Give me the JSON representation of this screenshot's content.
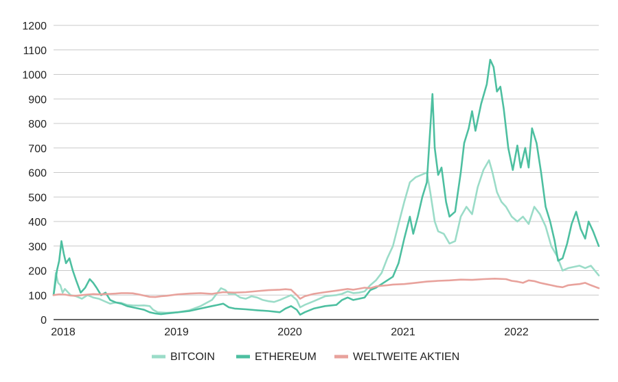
{
  "chart_data": {
    "type": "line",
    "title": "",
    "xlabel": "",
    "ylabel": "",
    "ylim": [
      0,
      1200
    ],
    "yticks": [
      0,
      100,
      200,
      300,
      400,
      500,
      600,
      700,
      800,
      900,
      1000,
      1100,
      1200
    ],
    "xlim": [
      2018.0,
      2022.82
    ],
    "xticks": [
      "2018",
      "2019",
      "2020",
      "2021",
      "2022"
    ],
    "grid": "horizontal",
    "legend_position": "bottom",
    "series": [
      {
        "name": "BITCOIN",
        "color": "#9bdcc8",
        "points": [
          [
            2018.0,
            100
          ],
          [
            2018.02,
            190
          ],
          [
            2018.04,
            150
          ],
          [
            2018.06,
            140
          ],
          [
            2018.08,
            110
          ],
          [
            2018.1,
            125
          ],
          [
            2018.15,
            100
          ],
          [
            2018.2,
            95
          ],
          [
            2018.25,
            85
          ],
          [
            2018.3,
            100
          ],
          [
            2018.35,
            90
          ],
          [
            2018.4,
            85
          ],
          [
            2018.45,
            75
          ],
          [
            2018.5,
            65
          ],
          [
            2018.55,
            70
          ],
          [
            2018.6,
            68
          ],
          [
            2018.65,
            60
          ],
          [
            2018.7,
            58
          ],
          [
            2018.75,
            57
          ],
          [
            2018.8,
            58
          ],
          [
            2018.85,
            55
          ],
          [
            2018.88,
            40
          ],
          [
            2018.92,
            30
          ],
          [
            2019.0,
            28
          ],
          [
            2019.1,
            30
          ],
          [
            2019.2,
            38
          ],
          [
            2019.3,
            55
          ],
          [
            2019.4,
            80
          ],
          [
            2019.45,
            110
          ],
          [
            2019.48,
            128
          ],
          [
            2019.52,
            120
          ],
          [
            2019.55,
            105
          ],
          [
            2019.6,
            105
          ],
          [
            2019.65,
            90
          ],
          [
            2019.7,
            85
          ],
          [
            2019.75,
            95
          ],
          [
            2019.8,
            90
          ],
          [
            2019.85,
            80
          ],
          [
            2019.9,
            75
          ],
          [
            2019.95,
            72
          ],
          [
            2020.0,
            80
          ],
          [
            2020.05,
            90
          ],
          [
            2020.1,
            100
          ],
          [
            2020.15,
            80
          ],
          [
            2020.18,
            50
          ],
          [
            2020.22,
            60
          ],
          [
            2020.3,
            75
          ],
          [
            2020.4,
            95
          ],
          [
            2020.5,
            100
          ],
          [
            2020.55,
            105
          ],
          [
            2020.6,
            115
          ],
          [
            2020.65,
            108
          ],
          [
            2020.7,
            110
          ],
          [
            2020.75,
            115
          ],
          [
            2020.8,
            140
          ],
          [
            2020.85,
            160
          ],
          [
            2020.9,
            190
          ],
          [
            2020.95,
            250
          ],
          [
            2021.0,
            300
          ],
          [
            2021.05,
            390
          ],
          [
            2021.1,
            480
          ],
          [
            2021.15,
            560
          ],
          [
            2021.2,
            580
          ],
          [
            2021.25,
            590
          ],
          [
            2021.3,
            600
          ],
          [
            2021.33,
            520
          ],
          [
            2021.37,
            400
          ],
          [
            2021.4,
            360
          ],
          [
            2021.45,
            350
          ],
          [
            2021.5,
            310
          ],
          [
            2021.55,
            320
          ],
          [
            2021.6,
            420
          ],
          [
            2021.65,
            460
          ],
          [
            2021.7,
            430
          ],
          [
            2021.75,
            540
          ],
          [
            2021.8,
            610
          ],
          [
            2021.85,
            650
          ],
          [
            2021.88,
            600
          ],
          [
            2021.92,
            520
          ],
          [
            2021.96,
            480
          ],
          [
            2022.0,
            460
          ],
          [
            2022.05,
            420
          ],
          [
            2022.1,
            400
          ],
          [
            2022.15,
            420
          ],
          [
            2022.2,
            390
          ],
          [
            2022.25,
            460
          ],
          [
            2022.3,
            430
          ],
          [
            2022.35,
            380
          ],
          [
            2022.4,
            300
          ],
          [
            2022.45,
            260
          ],
          [
            2022.5,
            200
          ],
          [
            2022.55,
            210
          ],
          [
            2022.6,
            215
          ],
          [
            2022.65,
            220
          ],
          [
            2022.7,
            210
          ],
          [
            2022.75,
            220
          ],
          [
            2022.82,
            180
          ]
        ]
      },
      {
        "name": "ETHEREUM",
        "color": "#4dbfa0",
        "points": [
          [
            2018.0,
            100
          ],
          [
            2018.01,
            130
          ],
          [
            2018.03,
            200
          ],
          [
            2018.05,
            240
          ],
          [
            2018.07,
            320
          ],
          [
            2018.09,
            270
          ],
          [
            2018.11,
            230
          ],
          [
            2018.14,
            250
          ],
          [
            2018.17,
            200
          ],
          [
            2018.2,
            160
          ],
          [
            2018.24,
            110
          ],
          [
            2018.28,
            130
          ],
          [
            2018.32,
            165
          ],
          [
            2018.35,
            150
          ],
          [
            2018.38,
            130
          ],
          [
            2018.42,
            100
          ],
          [
            2018.46,
            110
          ],
          [
            2018.5,
            80
          ],
          [
            2018.55,
            70
          ],
          [
            2018.6,
            65
          ],
          [
            2018.65,
            55
          ],
          [
            2018.7,
            50
          ],
          [
            2018.75,
            45
          ],
          [
            2018.8,
            40
          ],
          [
            2018.85,
            30
          ],
          [
            2018.9,
            25
          ],
          [
            2018.95,
            22
          ],
          [
            2019.0,
            25
          ],
          [
            2019.1,
            30
          ],
          [
            2019.2,
            35
          ],
          [
            2019.3,
            45
          ],
          [
            2019.4,
            55
          ],
          [
            2019.45,
            60
          ],
          [
            2019.5,
            65
          ],
          [
            2019.55,
            50
          ],
          [
            2019.6,
            45
          ],
          [
            2019.7,
            42
          ],
          [
            2019.8,
            38
          ],
          [
            2019.9,
            35
          ],
          [
            2020.0,
            30
          ],
          [
            2020.05,
            45
          ],
          [
            2020.1,
            55
          ],
          [
            2020.15,
            40
          ],
          [
            2020.18,
            20
          ],
          [
            2020.22,
            30
          ],
          [
            2020.3,
            45
          ],
          [
            2020.4,
            55
          ],
          [
            2020.5,
            60
          ],
          [
            2020.55,
            80
          ],
          [
            2020.6,
            90
          ],
          [
            2020.65,
            80
          ],
          [
            2020.7,
            85
          ],
          [
            2020.75,
            90
          ],
          [
            2020.8,
            120
          ],
          [
            2020.85,
            130
          ],
          [
            2020.9,
            145
          ],
          [
            2020.95,
            160
          ],
          [
            2021.0,
            175
          ],
          [
            2021.05,
            230
          ],
          [
            2021.1,
            330
          ],
          [
            2021.15,
            420
          ],
          [
            2021.18,
            350
          ],
          [
            2021.22,
            420
          ],
          [
            2021.26,
            500
          ],
          [
            2021.3,
            560
          ],
          [
            2021.33,
            780
          ],
          [
            2021.35,
            920
          ],
          [
            2021.37,
            700
          ],
          [
            2021.4,
            590
          ],
          [
            2021.43,
            620
          ],
          [
            2021.47,
            480
          ],
          [
            2021.5,
            420
          ],
          [
            2021.55,
            440
          ],
          [
            2021.6,
            600
          ],
          [
            2021.63,
            720
          ],
          [
            2021.67,
            780
          ],
          [
            2021.7,
            850
          ],
          [
            2021.73,
            770
          ],
          [
            2021.78,
            880
          ],
          [
            2021.83,
            960
          ],
          [
            2021.86,
            1060
          ],
          [
            2021.89,
            1030
          ],
          [
            2021.92,
            930
          ],
          [
            2021.95,
            950
          ],
          [
            2021.98,
            860
          ],
          [
            2022.02,
            700
          ],
          [
            2022.06,
            610
          ],
          [
            2022.1,
            710
          ],
          [
            2022.13,
            620
          ],
          [
            2022.17,
            700
          ],
          [
            2022.2,
            620
          ],
          [
            2022.23,
            780
          ],
          [
            2022.27,
            720
          ],
          [
            2022.31,
            600
          ],
          [
            2022.35,
            460
          ],
          [
            2022.39,
            400
          ],
          [
            2022.43,
            320
          ],
          [
            2022.46,
            240
          ],
          [
            2022.5,
            250
          ],
          [
            2022.54,
            310
          ],
          [
            2022.58,
            390
          ],
          [
            2022.62,
            440
          ],
          [
            2022.66,
            370
          ],
          [
            2022.7,
            330
          ],
          [
            2022.73,
            400
          ],
          [
            2022.77,
            360
          ],
          [
            2022.82,
            300
          ]
        ]
      },
      {
        "name": "WELTWEITE AKTIEN",
        "color": "#e8a29c",
        "points": [
          [
            2018.0,
            100
          ],
          [
            2018.05,
            103
          ],
          [
            2018.1,
            102
          ],
          [
            2018.15,
            98
          ],
          [
            2018.2,
            97
          ],
          [
            2018.25,
            100
          ],
          [
            2018.3,
            102
          ],
          [
            2018.35,
            104
          ],
          [
            2018.4,
            103
          ],
          [
            2018.45,
            104
          ],
          [
            2018.5,
            105
          ],
          [
            2018.55,
            106
          ],
          [
            2018.6,
            108
          ],
          [
            2018.65,
            108
          ],
          [
            2018.7,
            107
          ],
          [
            2018.75,
            103
          ],
          [
            2018.8,
            98
          ],
          [
            2018.85,
            93
          ],
          [
            2018.9,
            92
          ],
          [
            2018.95,
            95
          ],
          [
            2019.0,
            97
          ],
          [
            2019.1,
            103
          ],
          [
            2019.2,
            106
          ],
          [
            2019.3,
            108
          ],
          [
            2019.4,
            105
          ],
          [
            2019.5,
            112
          ],
          [
            2019.6,
            110
          ],
          [
            2019.7,
            112
          ],
          [
            2019.8,
            116
          ],
          [
            2019.9,
            120
          ],
          [
            2020.0,
            122
          ],
          [
            2020.05,
            124
          ],
          [
            2020.1,
            122
          ],
          [
            2020.15,
            100
          ],
          [
            2020.18,
            85
          ],
          [
            2020.22,
            95
          ],
          [
            2020.3,
            105
          ],
          [
            2020.4,
            112
          ],
          [
            2020.5,
            118
          ],
          [
            2020.6,
            125
          ],
          [
            2020.65,
            122
          ],
          [
            2020.7,
            126
          ],
          [
            2020.75,
            130
          ],
          [
            2020.8,
            128
          ],
          [
            2020.85,
            135
          ],
          [
            2020.9,
            138
          ],
          [
            2020.95,
            140
          ],
          [
            2021.0,
            143
          ],
          [
            2021.1,
            145
          ],
          [
            2021.2,
            150
          ],
          [
            2021.3,
            155
          ],
          [
            2021.4,
            158
          ],
          [
            2021.5,
            160
          ],
          [
            2021.6,
            163
          ],
          [
            2021.7,
            162
          ],
          [
            2021.8,
            165
          ],
          [
            2021.9,
            167
          ],
          [
            2022.0,
            165
          ],
          [
            2022.05,
            158
          ],
          [
            2022.1,
            155
          ],
          [
            2022.15,
            150
          ],
          [
            2022.2,
            160
          ],
          [
            2022.25,
            157
          ],
          [
            2022.3,
            150
          ],
          [
            2022.35,
            145
          ],
          [
            2022.4,
            140
          ],
          [
            2022.45,
            135
          ],
          [
            2022.5,
            132
          ],
          [
            2022.55,
            140
          ],
          [
            2022.6,
            143
          ],
          [
            2022.65,
            145
          ],
          [
            2022.7,
            150
          ],
          [
            2022.75,
            140
          ],
          [
            2022.82,
            128
          ]
        ]
      }
    ]
  }
}
